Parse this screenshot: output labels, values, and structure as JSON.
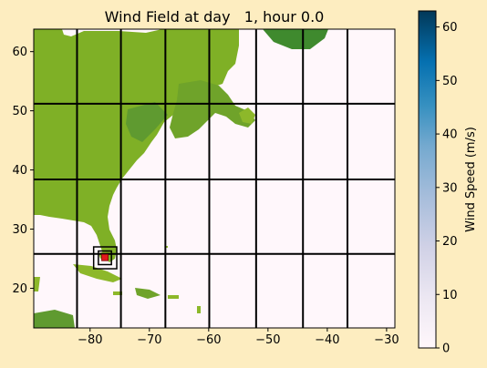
{
  "chart_data": {
    "type": "heatmap",
    "title": "Wind Field at day   1, hour 0.0",
    "xlabel": "",
    "ylabel": "",
    "xlim": [
      -89.5,
      -28.6
    ],
    "ylim": [
      13.3,
      63.8
    ],
    "x_ticks": [
      -80,
      -70,
      -60,
      -50,
      -40,
      -30
    ],
    "x_tick_labels": [
      "−80",
      "−70",
      "−60",
      "−50",
      "−40",
      "−30"
    ],
    "y_ticks": [
      20,
      30,
      40,
      50,
      60
    ],
    "y_tick_labels": [
      "20",
      "30",
      "40",
      "50",
      "60"
    ],
    "grid": true,
    "grid_x_lines": [
      -82.2,
      -74.8,
      -67.3,
      -59.9,
      -52.0,
      -44.1,
      -36.6
    ],
    "grid_y_lines": [
      25.8,
      38.4,
      51.2
    ],
    "wind_speed_peak": 63,
    "storm_center": {
      "lon": -77.5,
      "lat": 25.2
    },
    "storm_box_inner": {
      "lon_min": -78.6,
      "lon_max": -76.4,
      "lat_min": 24.0,
      "lat_max": 26.3
    },
    "storm_box_outer": {
      "lon_min": -79.4,
      "lon_max": -75.5,
      "lat_min": 23.3,
      "lat_max": 27.0
    },
    "colorbar": {
      "label": "Wind Speed (m/s)",
      "min": 0,
      "max": 63,
      "ticks": [
        0,
        10,
        20,
        30,
        40,
        50,
        60
      ],
      "tick_labels": [
        "0",
        "10",
        "20",
        "30",
        "40",
        "50",
        "60"
      ],
      "colormap": "PuBu"
    },
    "colors": {
      "ocean": "#fff7fb",
      "land_low": "#8db82a",
      "land_high": "#3f8a2e",
      "storm_center": "#e31a1c",
      "grid": "#000000",
      "background": "#fdedc0"
    }
  }
}
